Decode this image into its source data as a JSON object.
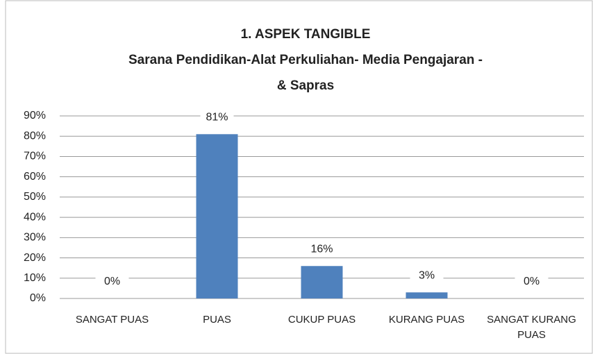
{
  "chart_data": {
    "type": "bar",
    "title": [
      "1. ASPEK TANGIBLE",
      "Sarana Pendidikan-Alat Perkuliahan- Media Pengajaran -",
      "& Sapras"
    ],
    "categories": [
      "SANGAT PUAS",
      "PUAS",
      "CUKUP PUAS",
      "KURANG PUAS",
      "SANGAT KURANG PUAS"
    ],
    "values": [
      0,
      81,
      16,
      3,
      0
    ],
    "value_labels": [
      "0%",
      "81%",
      "16%",
      "3%",
      "0%"
    ],
    "color": "#4f81bd",
    "ylim": [
      0,
      90
    ],
    "yticks": [
      {
        "value": 0,
        "label": "0%"
      },
      {
        "value": 10,
        "label": "10%"
      },
      {
        "value": 20,
        "label": "20%"
      },
      {
        "value": 30,
        "label": "30%"
      },
      {
        "value": 40,
        "label": "40%"
      },
      {
        "value": 50,
        "label": "50%"
      },
      {
        "value": 60,
        "label": "60%"
      },
      {
        "value": 70,
        "label": "70%"
      },
      {
        "value": 80,
        "label": "80%"
      },
      {
        "value": 90,
        "label": "90%"
      }
    ],
    "grid": true
  }
}
